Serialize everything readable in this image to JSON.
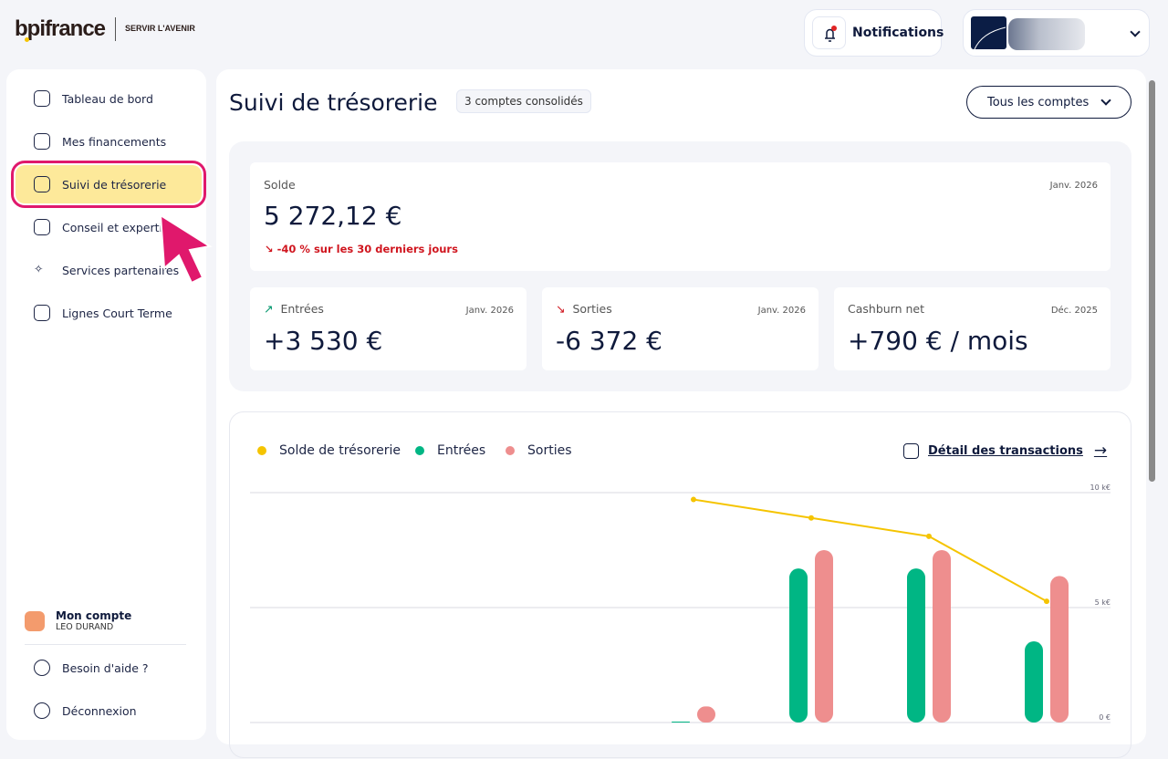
{
  "header": {
    "logo": "bpifrance",
    "tagline": "SERVIR L'AVENIR",
    "notifications_label": "Notifications"
  },
  "sidebar": {
    "items": [
      {
        "label": "Tableau de bord",
        "icon": "home-icon"
      },
      {
        "label": "Mes financements",
        "icon": "chart-icon"
      },
      {
        "label": "Suivi de trésorerie",
        "icon": "treasury-icon",
        "active": true
      },
      {
        "label": "Conseil et expertise",
        "icon": "compass-icon"
      },
      {
        "label": "Services partenaires",
        "icon": "sparkles-icon"
      },
      {
        "label": "Lignes Court Terme",
        "icon": "calculator-icon"
      }
    ],
    "account": {
      "label": "Mon compte",
      "user": "LEO DURAND"
    },
    "help": "Besoin d'aide ?",
    "logout": "Déconnexion"
  },
  "main": {
    "title": "Suivi de trésorerie",
    "badge": "3 comptes consolidés",
    "accounts_select": "Tous les comptes",
    "solde": {
      "label": "Solde",
      "date": "Janv. 2026",
      "value": "5 272,12 €",
      "trend": "-40 % sur les 30 derniers jours"
    },
    "entrees": {
      "label": "Entrées",
      "date": "Janv. 2026",
      "value": "+3 530 €"
    },
    "sorties": {
      "label": "Sorties",
      "date": "Janv. 2026",
      "value": "-6 372 €"
    },
    "cashburn": {
      "label": "Cashburn net",
      "date": "Déc. 2025",
      "value": "+790 € / mois"
    },
    "detail_link": "Détail des transactions"
  },
  "colors": {
    "solde": "#f5c400",
    "entrees": "#00b684",
    "sorties": "#ee8e8e",
    "accent": "#e0186c",
    "active_bg": "#fde99a"
  },
  "chart_data": {
    "type": "bar+line",
    "ylim": [
      0,
      10000
    ],
    "yticks": [
      "0 €",
      "5 k€",
      "10 k€"
    ],
    "grid": true,
    "legend": "top-left",
    "series": [
      {
        "name": "Solde de trésorerie",
        "type": "line",
        "values": [
          9700,
          8900,
          8100,
          5272
        ]
      },
      {
        "name": "Entrées",
        "type": "bar",
        "values": [
          0,
          6700,
          6700,
          3530
        ]
      },
      {
        "name": "Sorties",
        "type": "bar",
        "values": [
          700,
          7500,
          7500,
          6372
        ]
      }
    ]
  }
}
